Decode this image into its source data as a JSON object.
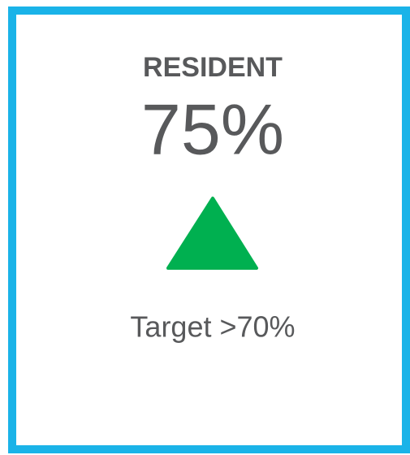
{
  "card": {
    "title": "RESIDENT",
    "value": "75%",
    "target": "Target >70%"
  }
}
